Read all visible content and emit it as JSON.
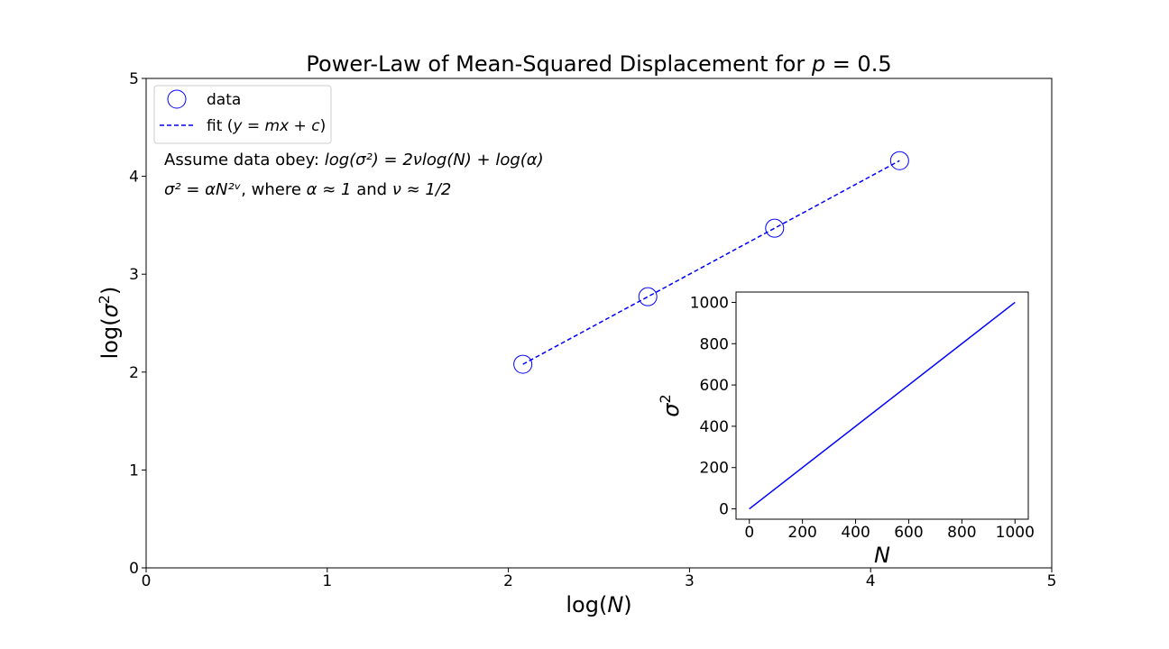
{
  "chart_data": [
    {
      "type": "scatter",
      "title_prefix": "Power-Law of Mean-Squared Displacement for ",
      "title_var": "p",
      "title_value": " = 0.5",
      "xlabel": {
        "prefix": "log(",
        "var": "N",
        "suffix": ")"
      },
      "ylabel": {
        "prefix": "log(",
        "var": "σ",
        "sup": "2",
        "suffix": ")"
      },
      "xlim": [
        0,
        5
      ],
      "ylim": [
        0,
        5
      ],
      "xticks": [
        "0",
        "1",
        "2",
        "3",
        "4",
        "5"
      ],
      "yticks": [
        "0",
        "1",
        "2",
        "3",
        "4",
        "5"
      ],
      "grid": false,
      "legend_placement": "top-left",
      "series": [
        {
          "name": "data",
          "style": "open-circle",
          "color": "#0000ff",
          "points": [
            {
              "x": 2.08,
              "y": 2.08
            },
            {
              "x": 2.77,
              "y": 2.77
            },
            {
              "x": 3.47,
              "y": 3.47
            },
            {
              "x": 4.16,
              "y": 4.16
            }
          ]
        },
        {
          "name": "fit",
          "style": "dashed-line",
          "color": "#0000ff",
          "points": [
            {
              "x": 2.08,
              "y": 2.08
            },
            {
              "x": 4.16,
              "y": 4.16
            }
          ]
        }
      ],
      "legend": [
        {
          "label": "data"
        },
        {
          "label_prefix": "fit (",
          "label_math": "y = mx + c",
          "label_suffix": ")"
        }
      ],
      "annotations": [
        {
          "prefix": "Assume data obey: ",
          "math": "log(σ²) = 2νlog(N) + log(α)"
        },
        {
          "math": "σ² = αN²ᵛ",
          "suffix": ", where ",
          "math2": "α ≈ 1",
          "suffix2": " and ",
          "math3": "ν ≈ 1/2"
        }
      ]
    },
    {
      "type": "line",
      "inset": true,
      "xlabel": "N",
      "ylabel": {
        "var": "σ",
        "sup": "2"
      },
      "xlim": [
        -50,
        1050
      ],
      "ylim": [
        -50,
        1050
      ],
      "xticks": [
        "0",
        "200",
        "400",
        "600",
        "800",
        "1000"
      ],
      "yticks": [
        "0",
        "200",
        "400",
        "600",
        "800",
        "1000"
      ],
      "series": [
        {
          "color": "#0000ff",
          "points": [
            {
              "x": 0,
              "y": 0
            },
            {
              "x": 1000,
              "y": 1000
            }
          ]
        }
      ]
    }
  ]
}
